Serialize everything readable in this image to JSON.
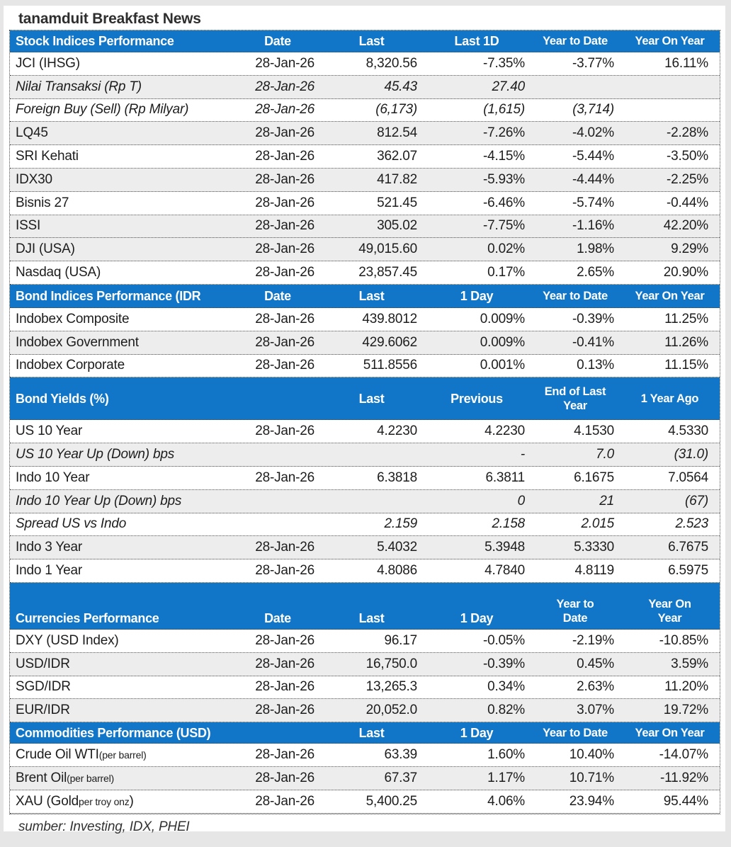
{
  "title": "tanamduit Breakfast News",
  "footer": "sumber: Investing, IDX, PHEI",
  "colors": {
    "header_blue": "#1176c8",
    "band_gray": "#ededed"
  },
  "sections": [
    {
      "id": "stock-indices",
      "header": [
        [
          "Stock Indices Performance"
        ],
        [
          "Date"
        ],
        [
          "Last"
        ],
        [
          "Last 1D"
        ],
        [
          "Year to Date"
        ],
        [
          "Year On Year"
        ]
      ],
      "rows": [
        {
          "label_parts": [
            {
              "text": "JCI (IHSG)",
              "small": false
            }
          ],
          "italic": false,
          "shaded": false,
          "values": [
            "28-Jan-26",
            "8,320.56",
            "-7.35%",
            "-3.77%",
            "16.11%"
          ]
        },
        {
          "label_parts": [
            {
              "text": "Nilai Transaksi (Rp T)",
              "small": false
            }
          ],
          "italic": true,
          "shaded": true,
          "values": [
            "28-Jan-26",
            "45.43",
            "27.40",
            "",
            ""
          ]
        },
        {
          "label_parts": [
            {
              "text": "Foreign Buy (Sell) (Rp Milyar)",
              "small": false
            }
          ],
          "italic": true,
          "shaded": false,
          "values": [
            "28-Jan-26",
            "(6,173)",
            "(1,615)",
            "(3,714)",
            ""
          ]
        },
        {
          "label_parts": [
            {
              "text": "LQ45",
              "small": false
            }
          ],
          "italic": false,
          "shaded": true,
          "values": [
            "28-Jan-26",
            "812.54",
            "-7.26%",
            "-4.02%",
            "-2.28%"
          ]
        },
        {
          "label_parts": [
            {
              "text": "SRI Kehati",
              "small": false
            }
          ],
          "italic": false,
          "shaded": false,
          "values": [
            "28-Jan-26",
            "362.07",
            "-4.15%",
            "-5.44%",
            "-3.50%"
          ]
        },
        {
          "label_parts": [
            {
              "text": "IDX30",
              "small": false
            }
          ],
          "italic": false,
          "shaded": true,
          "values": [
            "28-Jan-26",
            "417.82",
            "-5.93%",
            "-4.44%",
            "-2.25%"
          ]
        },
        {
          "label_parts": [
            {
              "text": "Bisnis 27",
              "small": false
            }
          ],
          "italic": false,
          "shaded": false,
          "values": [
            "28-Jan-26",
            "521.45",
            "-6.46%",
            "-5.74%",
            "-0.44%"
          ]
        },
        {
          "label_parts": [
            {
              "text": "ISSI",
              "small": false
            }
          ],
          "italic": false,
          "shaded": true,
          "values": [
            "28-Jan-26",
            "305.02",
            "-7.75%",
            "-1.16%",
            "42.20%"
          ]
        },
        {
          "label_parts": [
            {
              "text": "DJI (USA)",
              "small": false
            }
          ],
          "italic": false,
          "shaded": true,
          "values": [
            "28-Jan-26",
            "49,015.60",
            "0.02%",
            "1.98%",
            "9.29%"
          ]
        },
        {
          "label_parts": [
            {
              "text": "Nasdaq (USA)",
              "small": false
            }
          ],
          "italic": false,
          "shaded": false,
          "values": [
            "28-Jan-26",
            "23,857.45",
            "0.17%",
            "2.65%",
            "20.90%"
          ]
        }
      ]
    },
    {
      "id": "bond-indices",
      "header": [
        [
          "Bond Indices Performance (IDR"
        ],
        [
          "Date"
        ],
        [
          "Last"
        ],
        [
          "1 Day"
        ],
        [
          "Year to Date"
        ],
        [
          "Year On Year"
        ]
      ],
      "rows": [
        {
          "label_parts": [
            {
              "text": "Indobex Composite",
              "small": false
            }
          ],
          "italic": false,
          "shaded": false,
          "values": [
            "28-Jan-26",
            "439.8012",
            "0.009%",
            "-0.39%",
            "11.25%"
          ]
        },
        {
          "label_parts": [
            {
              "text": "Indobex Government",
              "small": false
            }
          ],
          "italic": false,
          "shaded": true,
          "values": [
            "28-Jan-26",
            "429.6062",
            "0.009%",
            "-0.41%",
            "11.26%"
          ]
        },
        {
          "label_parts": [
            {
              "text": "Indobex Corporate",
              "small": false
            }
          ],
          "italic": false,
          "shaded": false,
          "values": [
            "28-Jan-26",
            "511.8556",
            "0.001%",
            "0.13%",
            "11.15%"
          ]
        }
      ]
    },
    {
      "id": "bond-yields",
      "header": [
        [
          "Bond Yields (%)"
        ],
        [
          ""
        ],
        [
          "Last"
        ],
        [
          "Previous"
        ],
        [
          "End of Last",
          "Year"
        ],
        [
          "1 Year Ago"
        ]
      ],
      "rows": [
        {
          "label_parts": [
            {
              "text": "US 10 Year",
              "small": false
            }
          ],
          "italic": false,
          "shaded": false,
          "values": [
            "28-Jan-26",
            "4.2230",
            "4.2230",
            "4.1530",
            "4.5330"
          ]
        },
        {
          "label_parts": [
            {
              "text": "US 10 Year Up (Down) bps",
              "small": false
            }
          ],
          "italic": true,
          "shaded": true,
          "values": [
            "",
            "",
            "-",
            "7.0",
            "(31.0)"
          ]
        },
        {
          "label_parts": [
            {
              "text": "Indo 10 Year",
              "small": false
            }
          ],
          "italic": false,
          "shaded": false,
          "values": [
            "28-Jan-26",
            "6.3818",
            "6.3811",
            "6.1675",
            "7.0564"
          ]
        },
        {
          "label_parts": [
            {
              "text": "Indo 10 Year Up (Down) bps",
              "small": false
            }
          ],
          "italic": true,
          "shaded": true,
          "values": [
            "",
            "",
            "0",
            "21",
            "(67)"
          ]
        },
        {
          "label_parts": [
            {
              "text": "Spread US vs Indo",
              "small": false
            }
          ],
          "italic": true,
          "shaded": false,
          "values": [
            "",
            "2.159",
            "2.158",
            "2.015",
            "2.523"
          ]
        },
        {
          "label_parts": [
            {
              "text": "Indo 3 Year",
              "small": false
            }
          ],
          "italic": false,
          "shaded": true,
          "values": [
            "28-Jan-26",
            "5.4032",
            "5.3948",
            "5.3330",
            "6.7675"
          ]
        },
        {
          "label_parts": [
            {
              "text": "Indo 1 Year",
              "small": false
            }
          ],
          "italic": false,
          "shaded": false,
          "values": [
            "28-Jan-26",
            "4.8086",
            "4.7840",
            "4.8119",
            "6.5975"
          ]
        }
      ]
    },
    {
      "id": "currencies",
      "header": [
        [
          "Currencies Performance"
        ],
        [
          "Date"
        ],
        [
          "Last"
        ],
        [
          "1 Day"
        ],
        [
          "Year to",
          "Date"
        ],
        [
          "Year On",
          "Year"
        ]
      ],
      "rows": [
        {
          "label_parts": [
            {
              "text": "DXY (USD Index)",
              "small": false
            }
          ],
          "italic": false,
          "shaded": false,
          "values": [
            "28-Jan-26",
            "96.17",
            "-0.05%",
            "-2.19%",
            "-10.85%"
          ]
        },
        {
          "label_parts": [
            {
              "text": "USD/IDR",
              "small": false
            }
          ],
          "italic": false,
          "shaded": true,
          "values": [
            "28-Jan-26",
            "16,750.0",
            "-0.39%",
            "0.45%",
            "3.59%"
          ]
        },
        {
          "label_parts": [
            {
              "text": "SGD/IDR",
              "small": false
            }
          ],
          "italic": false,
          "shaded": false,
          "values": [
            "28-Jan-26",
            "13,265.3",
            "0.34%",
            "2.63%",
            "11.20%"
          ]
        },
        {
          "label_parts": [
            {
              "text": "EUR/IDR",
              "small": false
            }
          ],
          "italic": false,
          "shaded": true,
          "values": [
            "28-Jan-26",
            "20,052.0",
            "0.82%",
            "3.07%",
            "19.72%"
          ]
        }
      ]
    },
    {
      "id": "commodities",
      "header": [
        [
          "Commodities Performance (USD)"
        ],
        [
          ""
        ],
        [
          "Last"
        ],
        [
          "1 Day"
        ],
        [
          "Year to Date"
        ],
        [
          "Year On Year"
        ]
      ],
      "rows": [
        {
          "label_parts": [
            {
              "text": "Crude Oil WTI ",
              "small": false
            },
            {
              "text": "(per barrel)",
              "small": true
            }
          ],
          "italic": false,
          "shaded": false,
          "values": [
            "28-Jan-26",
            "63.39",
            "1.60%",
            "10.40%",
            "-14.07%"
          ]
        },
        {
          "label_parts": [
            {
              "text": "Brent Oil ",
              "small": false
            },
            {
              "text": "(per barrel)",
              "small": true
            }
          ],
          "italic": false,
          "shaded": true,
          "values": [
            "28-Jan-26",
            "67.37",
            "1.17%",
            "10.71%",
            "-11.92%"
          ]
        },
        {
          "label_parts": [
            {
              "text": "XAU (Gold ",
              "small": false
            },
            {
              "text": "per troy onz",
              "small": true
            },
            {
              "text": ")",
              "small": false
            }
          ],
          "italic": false,
          "shaded": false,
          "values": [
            "28-Jan-26",
            "5,400.25",
            "4.06%",
            "23.94%",
            "95.44%"
          ]
        }
      ]
    }
  ]
}
